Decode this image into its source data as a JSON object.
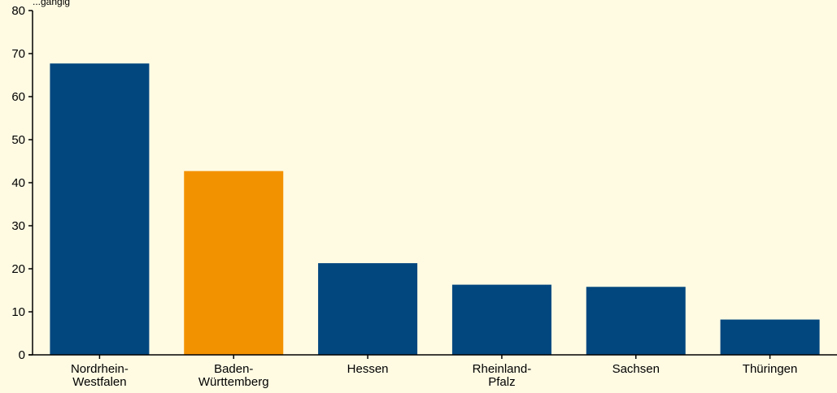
{
  "colors": {
    "background": "#fffbe3",
    "primary": "#03477f",
    "highlight": "#f39200",
    "axis": "#000000"
  },
  "chart_data": {
    "type": "bar",
    "categories": [
      [
        "Nordrhein-",
        "Westfalen"
      ],
      [
        "Baden-",
        "Württemberg"
      ],
      [
        "Hessen"
      ],
      [
        "Rheinland-",
        "Pfalz"
      ],
      [
        "Sachsen"
      ],
      [
        "Thüringen"
      ]
    ],
    "values": [
      67.7,
      42.7,
      21.3,
      16.3,
      15.8,
      8.2
    ],
    "highlight_index": 1,
    "ylim": [
      0,
      80
    ],
    "yticks": [
      0,
      10,
      20,
      30,
      40,
      50,
      60,
      70,
      80
    ],
    "ylabel": "...gängig",
    "xlabel": "",
    "title": "",
    "grid": false,
    "legend": "none"
  }
}
